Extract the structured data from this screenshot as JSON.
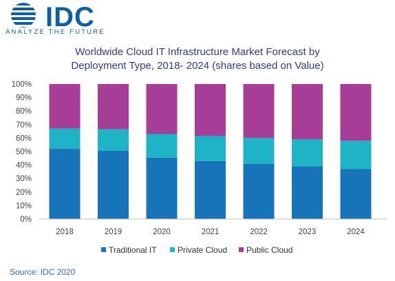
{
  "logo": {
    "text": "IDC",
    "tagline": "ANALYZE THE FUTURE",
    "color": "#0b5fa5"
  },
  "source": "Source: IDC 2020",
  "chart_data": {
    "type": "bar",
    "stacked": true,
    "title": "Worldwide Cloud IT Infrastructure Market Forecast by Deployment Type, 2018- 2024 (shares based on Value)",
    "title_lines": [
      "Worldwide Cloud IT Infrastructure Market Forecast by",
      "Deployment Type, 2018- 2024 (shares based on Value)"
    ],
    "categories": [
      "2018",
      "2019",
      "2020",
      "2021",
      "2022",
      "2023",
      "2024"
    ],
    "series": [
      {
        "name": "Traditional IT",
        "color": "#1874b8",
        "values": [
          52,
          50.5,
          45.5,
          43,
          41,
          39,
          37
        ]
      },
      {
        "name": "Private Cloud",
        "color": "#1fb3c8",
        "values": [
          15,
          16,
          17.5,
          18.5,
          19,
          20,
          21
        ]
      },
      {
        "name": "Public Cloud",
        "color": "#a63d97",
        "values": [
          33,
          33.5,
          37,
          38.5,
          40,
          41,
          42
        ]
      }
    ],
    "ylim": [
      0,
      100
    ],
    "yticks": [
      "0%",
      "10%",
      "20%",
      "30%",
      "40%",
      "50%",
      "60%",
      "70%",
      "80%",
      "90%",
      "100%"
    ],
    "grid": false,
    "legend_position": "bottom"
  }
}
